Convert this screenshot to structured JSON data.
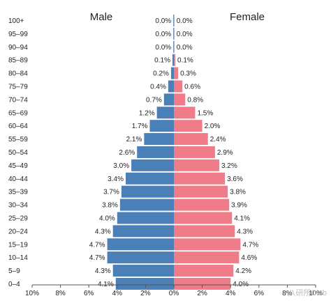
{
  "chart_data": {
    "type": "bar",
    "orientation": "horizontal-diverging",
    "categories": [
      "100+",
      "95–99",
      "90–94",
      "85–89",
      "80–84",
      "75–79",
      "70–74",
      "65–69",
      "60–64",
      "55–59",
      "50–54",
      "45–49",
      "40–44",
      "35–39",
      "30–34",
      "25–29",
      "20–24",
      "15–19",
      "10–14",
      "5–9",
      "0–4"
    ],
    "series": [
      {
        "name": "Male",
        "color": "#4a7fb8",
        "values": [
          0.0,
          0.0,
          0.0,
          0.1,
          0.2,
          0.4,
          0.7,
          1.2,
          1.7,
          2.1,
          2.6,
          3.0,
          3.4,
          3.7,
          3.8,
          4.0,
          4.3,
          4.7,
          4.7,
          4.3,
          4.1
        ],
        "labels": [
          "0.0%",
          "0.0%",
          "0.0%",
          "0.1%",
          "0.2%",
          "0.4%",
          "0.7%",
          "1.2%",
          "1.7%",
          "2.1%",
          "2.6%",
          "3.0%",
          "3.4%",
          "3.7%",
          "3.8%",
          "4.0%",
          "4.3%",
          "4.7%",
          "4.7%",
          "4.3%",
          "4.1%"
        ]
      },
      {
        "name": "Female",
        "color": "#f07c8a",
        "values": [
          0.0,
          0.0,
          0.0,
          0.1,
          0.3,
          0.6,
          0.8,
          1.5,
          2.0,
          2.4,
          2.9,
          3.2,
          3.6,
          3.8,
          3.9,
          4.1,
          4.3,
          4.7,
          4.6,
          4.2,
          4.0
        ],
        "labels": [
          "0.0%",
          "0.0%",
          "0.0%",
          "0.1%",
          "0.3%",
          "0.6%",
          "0.8%",
          "1.5%",
          "2.0%",
          "2.4%",
          "2.9%",
          "3.2%",
          "3.6%",
          "3.8%",
          "3.9%",
          "4.1%",
          "4.3%",
          "4.7%",
          "4.6%",
          "4.2%",
          "4.0%"
        ]
      }
    ],
    "xlim": [
      -10,
      10
    ],
    "xticks": [
      "10%",
      "8%",
      "6%",
      "4%",
      "2%",
      "0%",
      "2%",
      "4%",
      "6%",
      "8%",
      "10%"
    ],
    "legend": "top",
    "watermark": "八研所Club"
  }
}
